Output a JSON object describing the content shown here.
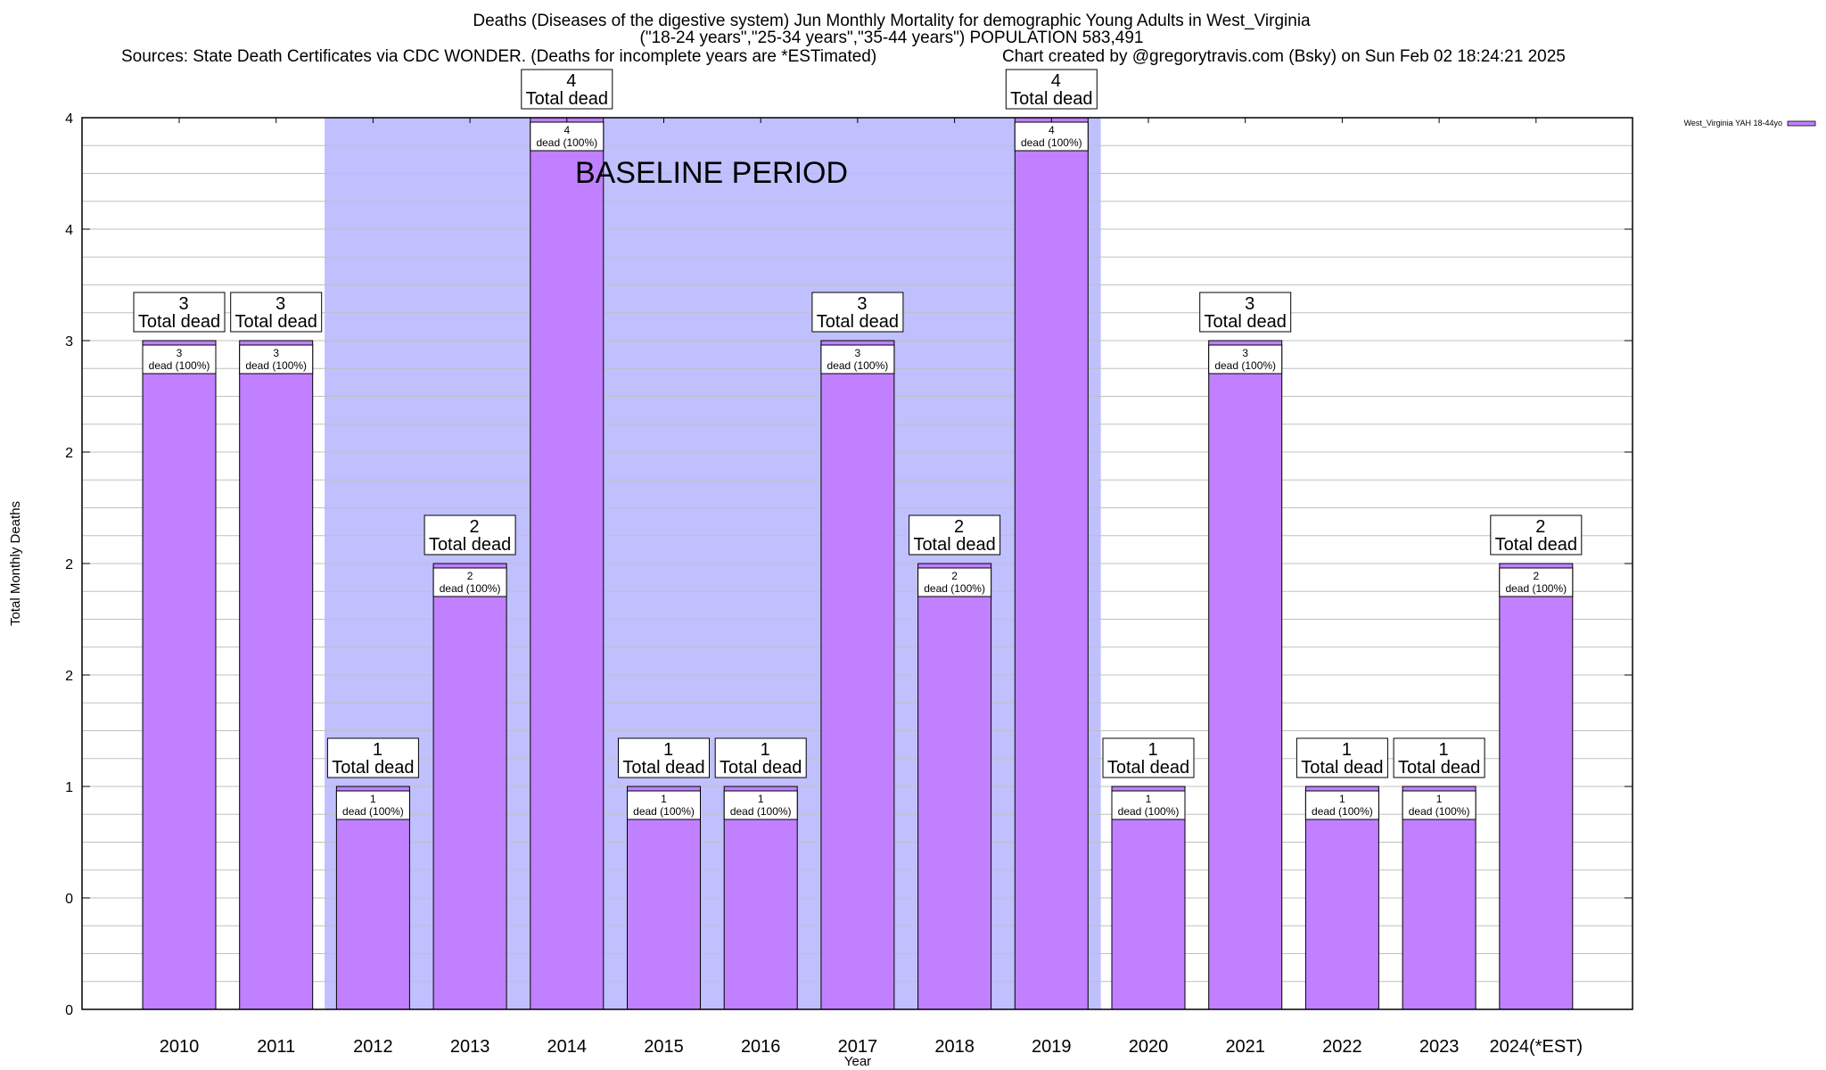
{
  "header": {
    "title_line1": "Deaths (Diseases of the digestive system) Jun Monthly Mortality for demographic Young Adults in West_Virginia",
    "title_line2": "(\"18-24 years\",\"25-34 years\",\"35-44 years\") POPULATION 583,491",
    "sources": "Sources: State Death Certificates via CDC WONDER. (Deaths for incomplete years are *ESTimated)",
    "credit": "Chart created by @gregorytravis.com (Bsky) on Sun Feb 02 18:24:21 2025"
  },
  "colors": {
    "bar_fill": "#c080ff",
    "baseline_shade": "#c0c0ff",
    "grid": "#c0c0c0",
    "axis": "#000000"
  },
  "chart_data": {
    "type": "bar",
    "title": "Deaths (Diseases of the digestive system) Jun Monthly Mortality for demographic Young Adults in West_Virginia",
    "xlabel": "Year",
    "ylabel": "Total Monthly Deaths",
    "ylim": [
      0,
      4
    ],
    "yticks": [
      0,
      0.5,
      1,
      1.5,
      2,
      2.5,
      3,
      3.5,
      4
    ],
    "ytick_labels": [
      "0",
      "0",
      "1",
      "2",
      "2",
      "2",
      "3",
      "4",
      "4"
    ],
    "grid": true,
    "legend_position": "top-right (outside plot)",
    "categories": [
      "2010",
      "2011",
      "2012",
      "2013",
      "2014",
      "2015",
      "2016",
      "2017",
      "2018",
      "2019",
      "2020",
      "2021",
      "2022",
      "2023",
      "2024(*EST)"
    ],
    "series": [
      {
        "name": "West_Virginia YAH 18-44yo",
        "values": [
          3,
          3,
          1,
          2,
          4,
          1,
          1,
          3,
          2,
          4,
          1,
          3,
          1,
          1,
          2
        ]
      }
    ],
    "total_label_suffix": "Total dead",
    "inner_label_suffix": "dead (100%)",
    "annotations": [
      {
        "text": "BASELINE PERIOD",
        "span_categories": [
          "2012",
          "2019"
        ]
      }
    ]
  }
}
